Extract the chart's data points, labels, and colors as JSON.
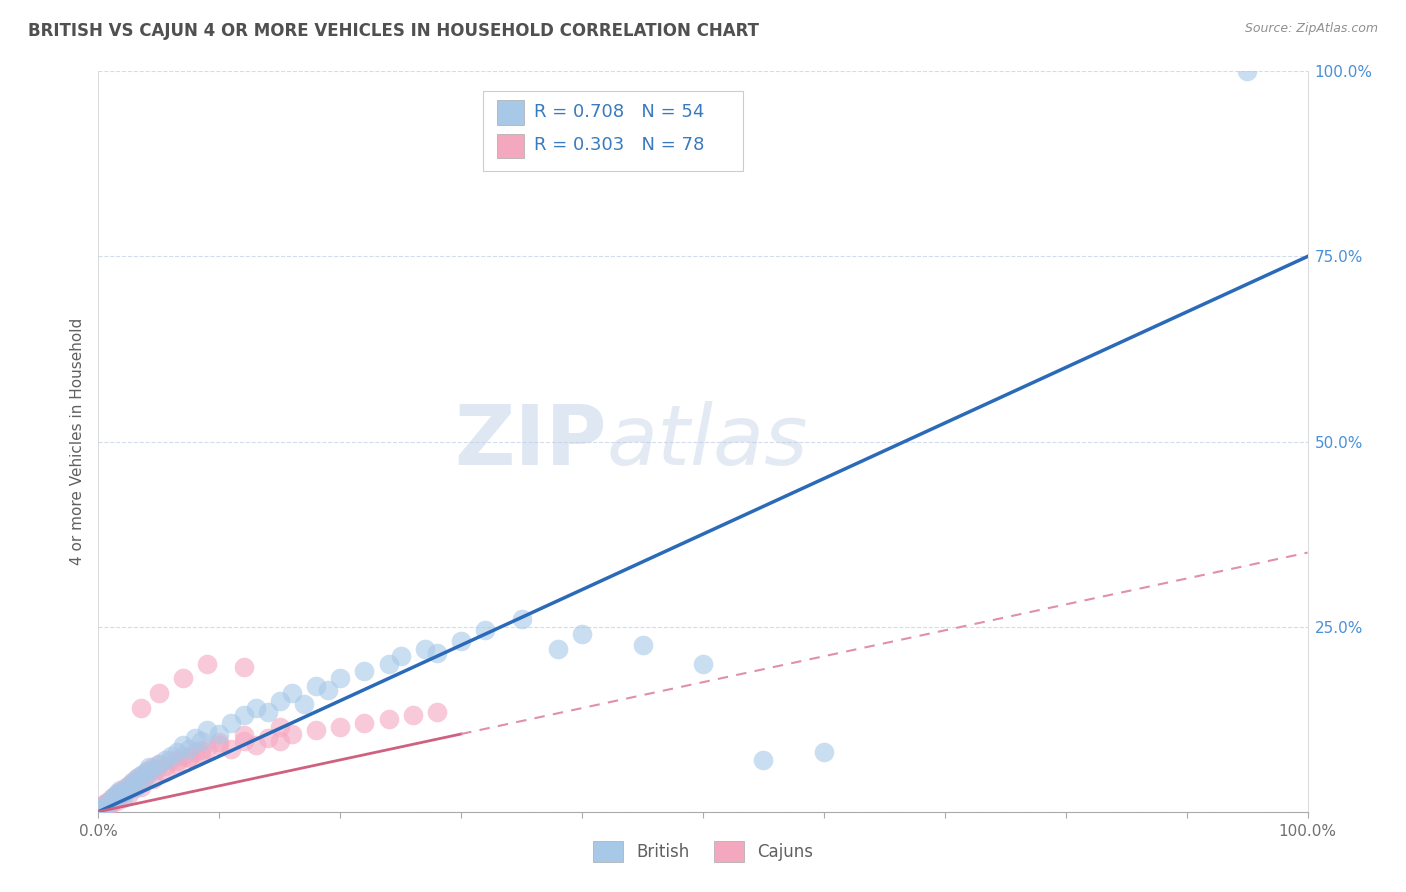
{
  "title": "BRITISH VS CAJUN 4 OR MORE VEHICLES IN HOUSEHOLD CORRELATION CHART",
  "source": "Source: ZipAtlas.com",
  "ylabel": "4 or more Vehicles in Household",
  "watermark_zip": "ZIP",
  "watermark_atlas": "atlas",
  "xlim": [
    0,
    100
  ],
  "ylim": [
    0,
    100
  ],
  "british_color": "#a8c8e8",
  "cajun_color": "#f4a8c0",
  "british_R": 0.708,
  "british_N": 54,
  "cajun_R": 0.303,
  "cajun_N": 78,
  "legend_color": "#3a7abf",
  "british_line_color": "#2a6ab8",
  "cajun_solid_color": "#d06080",
  "cajun_dash_color": "#e090a8",
  "background_color": "#ffffff",
  "grid_color": "#c8d4e8",
  "title_color": "#505050",
  "source_color": "#909090",
  "tick_color": "#4a90d9",
  "british_scatter": [
    [
      0.3,
      0.5
    ],
    [
      0.5,
      0.8
    ],
    [
      0.8,
      1.2
    ],
    [
      1.0,
      1.5
    ],
    [
      1.2,
      2.0
    ],
    [
      1.5,
      2.5
    ],
    [
      1.8,
      3.0
    ],
    [
      2.0,
      1.8
    ],
    [
      2.2,
      2.8
    ],
    [
      2.5,
      3.5
    ],
    [
      2.8,
      4.0
    ],
    [
      3.0,
      3.2
    ],
    [
      3.2,
      4.5
    ],
    [
      3.5,
      5.0
    ],
    [
      3.8,
      4.2
    ],
    [
      4.0,
      5.5
    ],
    [
      4.2,
      6.0
    ],
    [
      4.5,
      5.8
    ],
    [
      5.0,
      6.5
    ],
    [
      5.5,
      7.0
    ],
    [
      6.0,
      7.5
    ],
    [
      6.5,
      8.0
    ],
    [
      7.0,
      9.0
    ],
    [
      7.5,
      8.5
    ],
    [
      8.0,
      10.0
    ],
    [
      8.5,
      9.5
    ],
    [
      9.0,
      11.0
    ],
    [
      10.0,
      10.5
    ],
    [
      11.0,
      12.0
    ],
    [
      12.0,
      13.0
    ],
    [
      13.0,
      14.0
    ],
    [
      14.0,
      13.5
    ],
    [
      15.0,
      15.0
    ],
    [
      16.0,
      16.0
    ],
    [
      17.0,
      14.5
    ],
    [
      18.0,
      17.0
    ],
    [
      19.0,
      16.5
    ],
    [
      20.0,
      18.0
    ],
    [
      22.0,
      19.0
    ],
    [
      24.0,
      20.0
    ],
    [
      25.0,
      21.0
    ],
    [
      27.0,
      22.0
    ],
    [
      28.0,
      21.5
    ],
    [
      30.0,
      23.0
    ],
    [
      32.0,
      24.5
    ],
    [
      35.0,
      26.0
    ],
    [
      38.0,
      22.0
    ],
    [
      40.0,
      24.0
    ],
    [
      45.0,
      22.5
    ],
    [
      50.0,
      20.0
    ],
    [
      55.0,
      7.0
    ],
    [
      60.0,
      8.0
    ],
    [
      95.0,
      100.0
    ],
    [
      0.2,
      0.3
    ]
  ],
  "cajun_scatter": [
    [
      0.1,
      0.3
    ],
    [
      0.2,
      0.5
    ],
    [
      0.3,
      0.8
    ],
    [
      0.4,
      0.6
    ],
    [
      0.5,
      1.0
    ],
    [
      0.6,
      0.9
    ],
    [
      0.7,
      1.3
    ],
    [
      0.8,
      1.0
    ],
    [
      0.9,
      1.5
    ],
    [
      1.0,
      1.2
    ],
    [
      1.1,
      1.8
    ],
    [
      1.2,
      1.5
    ],
    [
      1.3,
      2.0
    ],
    [
      1.4,
      1.7
    ],
    [
      1.5,
      2.3
    ],
    [
      1.6,
      2.0
    ],
    [
      1.7,
      2.5
    ],
    [
      1.8,
      2.2
    ],
    [
      1.9,
      2.8
    ],
    [
      2.0,
      2.5
    ],
    [
      2.1,
      3.0
    ],
    [
      2.2,
      2.7
    ],
    [
      2.3,
      3.3
    ],
    [
      2.4,
      3.0
    ],
    [
      2.5,
      3.5
    ],
    [
      2.6,
      3.2
    ],
    [
      2.7,
      3.8
    ],
    [
      2.8,
      3.5
    ],
    [
      2.9,
      4.0
    ],
    [
      3.0,
      3.7
    ],
    [
      3.2,
      4.5
    ],
    [
      3.4,
      4.2
    ],
    [
      3.6,
      5.0
    ],
    [
      3.8,
      4.7
    ],
    [
      4.0,
      5.5
    ],
    [
      4.2,
      5.2
    ],
    [
      4.5,
      6.0
    ],
    [
      4.8,
      5.7
    ],
    [
      5.0,
      6.5
    ],
    [
      5.5,
      6.2
    ],
    [
      6.0,
      7.0
    ],
    [
      6.5,
      6.8
    ],
    [
      7.0,
      7.5
    ],
    [
      7.5,
      7.2
    ],
    [
      8.0,
      8.0
    ],
    [
      8.5,
      7.8
    ],
    [
      9.0,
      8.5
    ],
    [
      10.0,
      9.0
    ],
    [
      11.0,
      8.5
    ],
    [
      12.0,
      9.5
    ],
    [
      13.0,
      9.0
    ],
    [
      14.0,
      10.0
    ],
    [
      15.0,
      9.5
    ],
    [
      16.0,
      10.5
    ],
    [
      18.0,
      11.0
    ],
    [
      20.0,
      11.5
    ],
    [
      22.0,
      12.0
    ],
    [
      24.0,
      12.5
    ],
    [
      26.0,
      13.0
    ],
    [
      28.0,
      13.5
    ],
    [
      3.5,
      14.0
    ],
    [
      5.0,
      16.0
    ],
    [
      7.0,
      18.0
    ],
    [
      9.0,
      20.0
    ],
    [
      12.0,
      19.5
    ],
    [
      0.5,
      0.4
    ],
    [
      0.8,
      0.7
    ],
    [
      1.5,
      1.4
    ],
    [
      2.5,
      2.4
    ],
    [
      3.5,
      3.4
    ],
    [
      4.5,
      4.4
    ],
    [
      5.5,
      5.4
    ],
    [
      6.5,
      6.4
    ],
    [
      7.5,
      7.4
    ],
    [
      8.5,
      8.4
    ],
    [
      10.0,
      9.4
    ],
    [
      12.0,
      10.4
    ],
    [
      15.0,
      11.4
    ]
  ]
}
